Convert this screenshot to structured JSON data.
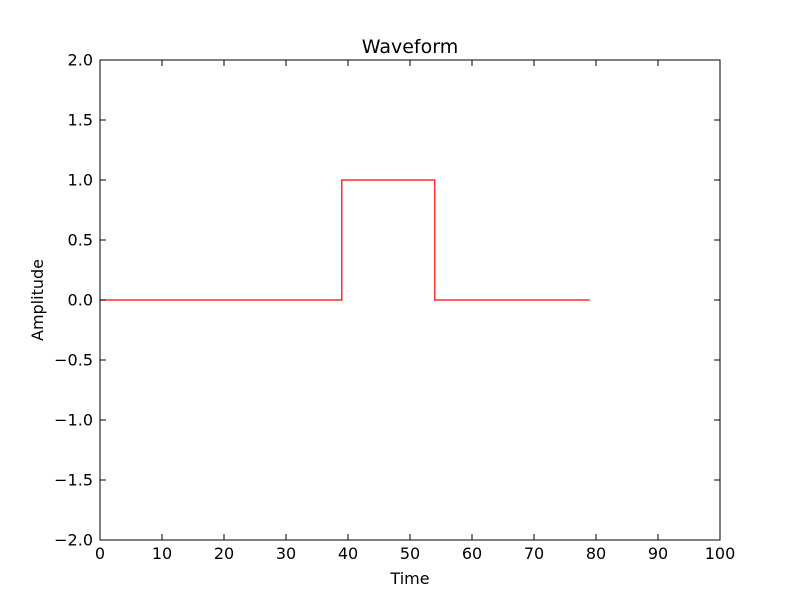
{
  "chart_data": {
    "type": "line",
    "title": "Waveform",
    "xlabel": "Time",
    "ylabel": "Amplitude",
    "xlim": [
      0,
      100
    ],
    "ylim": [
      -2.0,
      2.0
    ],
    "xticks": [
      0,
      10,
      20,
      30,
      40,
      50,
      60,
      70,
      80,
      90,
      100
    ],
    "xtick_labels": [
      "0",
      "10",
      "20",
      "30",
      "40",
      "50",
      "60",
      "70",
      "80",
      "90",
      "100"
    ],
    "yticks": [
      -2.0,
      -1.5,
      -1.0,
      -0.5,
      0.0,
      0.5,
      1.0,
      1.5,
      2.0
    ],
    "ytick_labels": [
      "−2.0",
      "−1.5",
      "−1.0",
      "−0.5",
      "0.0",
      "0.5",
      "1.0",
      "1.5",
      "2.0"
    ],
    "grid": false,
    "series": [
      {
        "color": "#ff0000",
        "drawstyle": "steps",
        "x": [
          0,
          39,
          39,
          54,
          54,
          79
        ],
        "y": [
          0,
          0,
          1,
          1,
          0,
          0
        ]
      }
    ]
  }
}
